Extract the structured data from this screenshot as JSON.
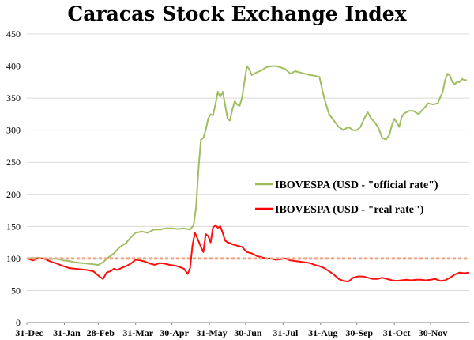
{
  "chart_data": {
    "type": "line",
    "title": "Caracas Stock Exchange Index",
    "ylim": [
      0,
      450
    ],
    "yticks": [
      0,
      50,
      100,
      150,
      200,
      250,
      300,
      350,
      400,
      450
    ],
    "x_range": [
      0,
      366
    ],
    "xticks": [
      {
        "label": "31-Dec",
        "x": 0
      },
      {
        "label": "31-Jan",
        "x": 31
      },
      {
        "label": "28-Feb",
        "x": 59
      },
      {
        "label": "31-Mar",
        "x": 90
      },
      {
        "label": "30-Apr",
        "x": 120
      },
      {
        "label": "31-May",
        "x": 151
      },
      {
        "label": "30-Jun",
        "x": 181
      },
      {
        "label": "31-Jul",
        "x": 212
      },
      {
        "label": "31-Aug",
        "x": 243
      },
      {
        "label": "30-Sep",
        "x": 273
      },
      {
        "label": "31-Oct",
        "x": 304
      },
      {
        "label": "30-Nov",
        "x": 334
      }
    ],
    "grid": "horizontal",
    "legend_position": "center-right",
    "series": [
      {
        "name": "IBOVESPA (USD - \"official rate\")",
        "color": "#9bbb59",
        "x": [
          0,
          5,
          10,
          15,
          20,
          25,
          30,
          35,
          40,
          45,
          50,
          55,
          59,
          63,
          67,
          72,
          77,
          82,
          86,
          90,
          95,
          100,
          105,
          110,
          115,
          120,
          125,
          130,
          135,
          138,
          140,
          142,
          144,
          146,
          148,
          150,
          152,
          154,
          156,
          158,
          160,
          162,
          164,
          166,
          168,
          170,
          172,
          174,
          176,
          178,
          180,
          182,
          184,
          186,
          188,
          190,
          194,
          198,
          202,
          206,
          210,
          214,
          218,
          222,
          226,
          230,
          234,
          238,
          242,
          246,
          250,
          254,
          258,
          262,
          266,
          270,
          273,
          276,
          279,
          282,
          285,
          288,
          291,
          294,
          297,
          300,
          302,
          304,
          306,
          308,
          310,
          312,
          316,
          320,
          324,
          328,
          332,
          336,
          340,
          344,
          346,
          348,
          350,
          352,
          354,
          356,
          358,
          360,
          362,
          364
        ],
        "values": [
          100,
          101,
          101,
          100,
          99,
          100,
          97,
          96,
          94,
          93,
          92,
          91,
          90,
          94,
          101,
          108,
          118,
          124,
          133,
          140,
          142,
          140,
          145,
          145,
          147,
          147,
          146,
          147,
          145,
          152,
          180,
          240,
          285,
          288,
          300,
          318,
          325,
          323,
          340,
          360,
          352,
          360,
          340,
          318,
          315,
          332,
          345,
          340,
          338,
          350,
          375,
          400,
          395,
          386,
          388,
          390,
          393,
          398,
          400,
          400,
          398,
          395,
          388,
          392,
          390,
          388,
          386,
          385,
          383,
          350,
          325,
          315,
          305,
          300,
          305,
          300,
          300,
          305,
          318,
          328,
          318,
          312,
          303,
          288,
          285,
          293,
          308,
          318,
          312,
          305,
          320,
          326,
          330,
          330,
          325,
          333,
          342,
          340,
          342,
          360,
          378,
          388,
          385,
          375,
          372,
          375,
          375,
          380,
          378,
          378
        ]
      },
      {
        "name": "IBOVESPA (USD - \"real rate\")",
        "color": "#ff0000",
        "x": [
          0,
          5,
          10,
          15,
          20,
          25,
          30,
          35,
          40,
          45,
          50,
          55,
          60,
          63,
          66,
          69,
          72,
          75,
          78,
          82,
          86,
          90,
          94,
          98,
          102,
          106,
          110,
          114,
          118,
          122,
          126,
          130,
          133,
          135,
          137,
          139,
          141,
          144,
          146,
          148,
          150,
          152,
          154,
          156,
          158,
          160,
          162,
          164,
          166,
          168,
          170,
          174,
          178,
          182,
          186,
          190,
          194,
          198,
          202,
          206,
          210,
          214,
          218,
          222,
          226,
          230,
          234,
          238,
          242,
          246,
          250,
          254,
          258,
          262,
          266,
          270,
          274,
          278,
          282,
          286,
          290,
          294,
          298,
          302,
          306,
          310,
          314,
          318,
          322,
          326,
          330,
          334,
          338,
          342,
          346,
          350,
          354,
          358,
          362,
          366
        ],
        "values": [
          100,
          97,
          101,
          99,
          95,
          92,
          88,
          85,
          84,
          83,
          82,
          80,
          72,
          68,
          78,
          80,
          84,
          82,
          85,
          88,
          92,
          98,
          97,
          95,
          92,
          90,
          93,
          92,
          90,
          89,
          87,
          84,
          76,
          85,
          120,
          140,
          132,
          118,
          110,
          138,
          135,
          125,
          148,
          152,
          148,
          150,
          140,
          128,
          125,
          124,
          122,
          120,
          118,
          110,
          108,
          104,
          102,
          100,
          100,
          98,
          99,
          100,
          97,
          96,
          95,
          94,
          93,
          90,
          88,
          85,
          80,
          75,
          68,
          65,
          64,
          70,
          72,
          72,
          70,
          68,
          68,
          70,
          68,
          66,
          65,
          66,
          67,
          66,
          67,
          67,
          66,
          67,
          68,
          65,
          66,
          70,
          75,
          78,
          77,
          78
        ]
      },
      {
        "name": "",
        "color": "#f4a582",
        "style": "dashed",
        "x": [
          0,
          366
        ],
        "values": [
          100,
          100
        ]
      }
    ],
    "legend": [
      {
        "label": "IBOVESPA (USD - \"official rate\")",
        "color": "#9bbb59"
      },
      {
        "label": "IBOVESPA (USD - \"real rate\")",
        "color": "#ff0000"
      }
    ]
  }
}
